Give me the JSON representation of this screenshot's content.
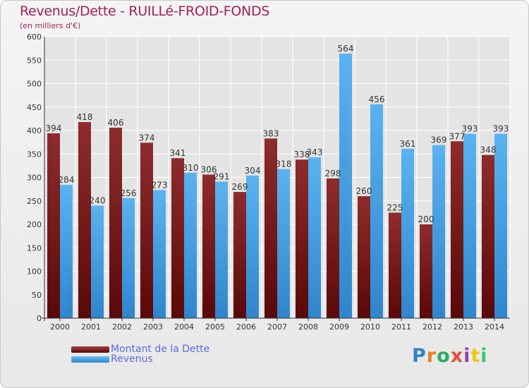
{
  "header": {
    "title": "Revenus/Dette - RUILLé-FROID-FONDS",
    "subtitle": "(en milliers d'€)"
  },
  "legend": {
    "debt_label": "Montant de la Dette",
    "revenue_label": "Revenus"
  },
  "logo": {
    "text": "Proxiti"
  },
  "colors": {
    "debt": "#7a1a1a",
    "revenue": "#4aa3e8",
    "title": "#a0205a",
    "legend_text": "#5a6be0"
  },
  "chart_data": {
    "type": "bar",
    "title": "Revenus/Dette - RUILLé-FROID-FONDS",
    "ylabel": "(en milliers d'€)",
    "xlabel": "",
    "categories": [
      "2000",
      "2001",
      "2002",
      "2003",
      "2004",
      "2005",
      "2006",
      "2007",
      "2008",
      "2009",
      "2010",
      "2011",
      "2012",
      "2013",
      "2014"
    ],
    "series": [
      {
        "name": "Montant de la Dette",
        "values": [
          394,
          418,
          406,
          374,
          341,
          306,
          269,
          383,
          338,
          298,
          260,
          225,
          200,
          377,
          348
        ]
      },
      {
        "name": "Revenus",
        "values": [
          284,
          240,
          256,
          273,
          310,
          291,
          304,
          318,
          343,
          564,
          456,
          361,
          369,
          393,
          393
        ]
      }
    ],
    "ylim": [
      0,
      600
    ],
    "yticks": [
      0,
      50,
      100,
      150,
      200,
      250,
      300,
      350,
      400,
      450,
      500,
      550,
      600
    ],
    "grid": true,
    "legend_position": "bottom-left"
  }
}
